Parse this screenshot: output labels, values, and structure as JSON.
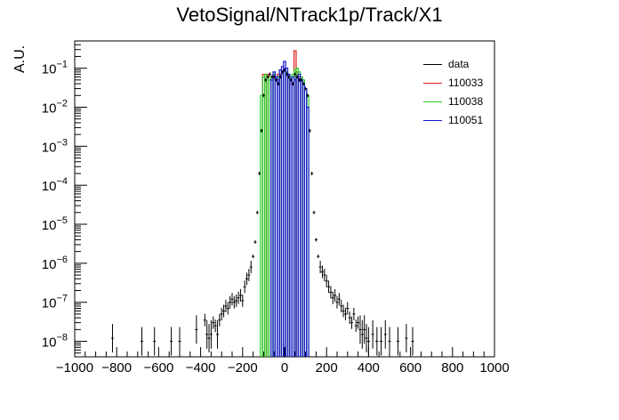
{
  "page": {
    "title": "VetoSignal/NTrack1p/Track/X1"
  },
  "chart_data": {
    "type": "histogram",
    "title": "VetoSignal/NTrack1p/Track/X1",
    "xlabel": "",
    "ylabel": "A.U.",
    "xlim": [
      -1000,
      1000
    ],
    "ylim": [
      4e-09,
      0.5
    ],
    "yscale": "log",
    "grid": false,
    "legend_position": "top-right",
    "x_tick_labels": [
      "−1000",
      "−800",
      "−600",
      "−400",
      "−200",
      "0",
      "200",
      "400",
      "600",
      "800",
      "1000"
    ],
    "x_ticks": [
      -1000,
      -800,
      -600,
      -400,
      -200,
      0,
      200,
      400,
      600,
      800,
      1000
    ],
    "y_ticks": [
      1e-08,
      1e-07,
      1e-06,
      1e-05,
      0.0001,
      0.001,
      0.01,
      0.1
    ],
    "y_tick_labels": [
      {
        "base": "10",
        "exp": "−8"
      },
      {
        "base": "10",
        "exp": "−7"
      },
      {
        "base": "10",
        "exp": "−6"
      },
      {
        "base": "10",
        "exp": "−5"
      },
      {
        "base": "10",
        "exp": "−4"
      },
      {
        "base": "10",
        "exp": "−3"
      },
      {
        "base": "10",
        "exp": "−2"
      },
      {
        "base": "10",
        "exp": "−1"
      }
    ],
    "series": [
      {
        "name": "data",
        "color": "#000000",
        "style": "points",
        "points": [
          [
            -820,
            1.2e-08
          ],
          [
            -680,
            1e-08
          ],
          [
            -620,
            1e-08
          ],
          [
            -540,
            1e-08
          ],
          [
            -500,
            1e-08
          ],
          [
            -420,
            2e-08
          ],
          [
            -380,
            3.5e-08
          ],
          [
            -370,
            1.5e-08
          ],
          [
            -360,
            1.2e-08
          ],
          [
            -350,
            1.5e-08
          ],
          [
            -340,
            3e-08
          ],
          [
            -330,
            2.5e-08
          ],
          [
            -320,
            1.5e-08
          ],
          [
            -310,
            3.5e-08
          ],
          [
            -300,
            5e-08
          ],
          [
            -290,
            6e-08
          ],
          [
            -280,
            8e-08
          ],
          [
            -270,
            7e-08
          ],
          [
            -260,
            1e-07
          ],
          [
            -250,
            1.2e-07
          ],
          [
            -240,
            1e-07
          ],
          [
            -230,
            1.1e-07
          ],
          [
            -220,
            1.3e-07
          ],
          [
            -210,
            1.5e-07
          ],
          [
            -200,
            1.1e-07
          ],
          [
            -190,
            2.5e-07
          ],
          [
            -180,
            4e-07
          ],
          [
            -170,
            5e-07
          ],
          [
            -160,
            8e-07
          ],
          [
            -150,
            1.5e-06
          ],
          [
            -140,
            3.5e-06
          ],
          [
            -130,
            2e-05
          ],
          [
            -120,
            0.0002
          ],
          [
            -110,
            0.0025
          ],
          [
            -100,
            0.02
          ],
          [
            -90,
            0.05
          ],
          [
            -80,
            0.06
          ],
          [
            -70,
            0.07
          ],
          [
            -60,
            0.06
          ],
          [
            -50,
            0.06
          ],
          [
            -40,
            0.05
          ],
          [
            -30,
            0.04
          ],
          [
            -20,
            0.06
          ],
          [
            -10,
            0.08
          ],
          [
            0,
            0.09
          ],
          [
            10,
            0.07
          ],
          [
            20,
            0.06
          ],
          [
            30,
            0.05
          ],
          [
            40,
            0.04
          ],
          [
            50,
            0.07
          ],
          [
            60,
            0.06
          ],
          [
            70,
            0.05
          ],
          [
            80,
            0.05
          ],
          [
            90,
            0.04
          ],
          [
            100,
            0.03
          ],
          [
            110,
            0.02
          ],
          [
            120,
            0.0025
          ],
          [
            130,
            0.0002
          ],
          [
            140,
            2e-05
          ],
          [
            150,
            4e-06
          ],
          [
            160,
            1.5e-06
          ],
          [
            170,
            8e-07
          ],
          [
            180,
            6e-07
          ],
          [
            190,
            5e-07
          ],
          [
            200,
            3.5e-07
          ],
          [
            210,
            2.5e-07
          ],
          [
            220,
            1.8e-07
          ],
          [
            230,
            1.3e-07
          ],
          [
            240,
            1.5e-07
          ],
          [
            250,
            1e-07
          ],
          [
            260,
            1.2e-07
          ],
          [
            270,
            8e-08
          ],
          [
            280,
            6e-08
          ],
          [
            290,
            5e-08
          ],
          [
            300,
            7e-08
          ],
          [
            310,
            4e-08
          ],
          [
            320,
            3e-08
          ],
          [
            330,
            5e-08
          ],
          [
            340,
            2.5e-08
          ],
          [
            350,
            3e-08
          ],
          [
            360,
            2e-08
          ],
          [
            370,
            1.5e-08
          ],
          [
            380,
            2e-08
          ],
          [
            390,
            1.2e-08
          ],
          [
            400,
            1e-08
          ],
          [
            420,
            1.5e-08
          ],
          [
            440,
            1e-08
          ],
          [
            460,
            1e-08
          ],
          [
            480,
            1.5e-08
          ],
          [
            500,
            1e-08
          ],
          [
            540,
            1e-08
          ],
          [
            580,
            1.2e-08
          ],
          [
            610,
            1e-08
          ]
        ]
      },
      {
        "name": "110033",
        "color": "#e31b1b",
        "style": "step",
        "bin_width": 10,
        "bins": [
          [
            -100,
            0.07
          ],
          [
            -90,
            0.07
          ],
          [
            -80,
            0.07
          ],
          [
            -30,
            0.07
          ],
          [
            -20,
            0.07
          ],
          [
            10,
            0.07
          ],
          [
            20,
            0.07
          ],
          [
            30,
            0.04
          ],
          [
            40,
            0.04
          ],
          [
            50,
            0.28
          ],
          [
            60,
            0.08
          ],
          [
            70,
            0.06
          ]
        ]
      },
      {
        "name": "110038",
        "color": "#22cc22",
        "style": "step",
        "bin_width": 10,
        "bins": [
          [
            -110,
            0.02
          ],
          [
            -100,
            0.06
          ],
          [
            -90,
            0.07
          ],
          [
            -80,
            0.06
          ],
          [
            -70,
            0.05
          ],
          [
            -60,
            0.06
          ],
          [
            -50,
            0.07
          ],
          [
            -40,
            0.06
          ],
          [
            -30,
            0.06
          ],
          [
            -20,
            0.06
          ],
          [
            -10,
            0.07
          ],
          [
            0,
            0.09
          ],
          [
            10,
            0.08
          ],
          [
            20,
            0.07
          ],
          [
            30,
            0.06
          ],
          [
            40,
            0.07
          ],
          [
            50,
            0.09
          ],
          [
            60,
            0.1
          ],
          [
            70,
            0.08
          ],
          [
            80,
            0.06
          ],
          [
            90,
            0.05
          ],
          [
            100,
            0.03
          ],
          [
            110,
            0.02
          ]
        ]
      },
      {
        "name": "110051",
        "color": "#1414cc",
        "style": "step",
        "bin_width": 10,
        "bins": [
          [
            -60,
            0.05
          ],
          [
            -50,
            0.08
          ],
          [
            -40,
            0.06
          ],
          [
            -30,
            0.05
          ],
          [
            -20,
            0.09
          ],
          [
            -10,
            0.11
          ],
          [
            0,
            0.15
          ],
          [
            10,
            0.1
          ],
          [
            20,
            0.07
          ],
          [
            30,
            0.05
          ],
          [
            40,
            0.06
          ],
          [
            50,
            0.05
          ],
          [
            60,
            0.06
          ],
          [
            70,
            0.07
          ],
          [
            80,
            0.05
          ],
          [
            90,
            0.04
          ],
          [
            100,
            0.03
          ],
          [
            110,
            0.01
          ]
        ]
      }
    ]
  }
}
